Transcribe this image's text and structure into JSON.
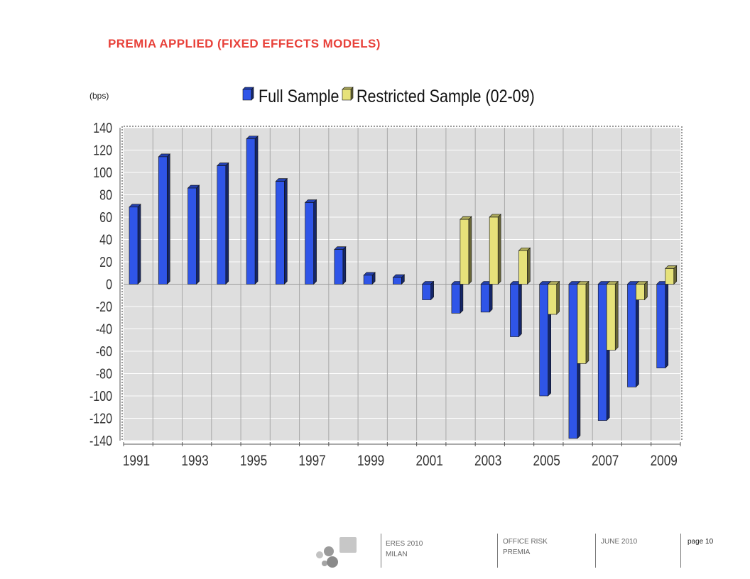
{
  "slide": {
    "title": "PREMIA APPLIED (FIXED EFFECTS MODELS)",
    "unit_label": "(bps)"
  },
  "chart_data": {
    "type": "bar",
    "title": "",
    "xlabel": "",
    "ylabel": "(bps)",
    "categories": [
      "1991",
      "1992",
      "1993",
      "1994",
      "1995",
      "1996",
      "1997",
      "1998",
      "1999",
      "2000",
      "2001",
      "2002",
      "2003",
      "2004",
      "2005",
      "2006",
      "2007",
      "2008",
      "2009"
    ],
    "x_tick_labels": [
      "1991",
      "1993",
      "1995",
      "1997",
      "1999",
      "2001",
      "2003",
      "2005",
      "2007",
      "2009"
    ],
    "y_ticks": [
      140,
      120,
      100,
      80,
      60,
      40,
      20,
      0,
      -20,
      -40,
      -60,
      -80,
      -100,
      -120,
      -140
    ],
    "ylim": [
      -140,
      140
    ],
    "grid": true,
    "legend_position": "top-center",
    "series": [
      {
        "name": "Full Sample",
        "color": "#2f55e8",
        "values": [
          69,
          114,
          86,
          106,
          130,
          92,
          73,
          31,
          8,
          6,
          -14,
          -26,
          -25,
          -47,
          -100,
          -138,
          -122,
          -92,
          -75
        ]
      },
      {
        "name": "Restricted Sample (02-09)",
        "color": "#e6e27a",
        "values": [
          null,
          null,
          null,
          null,
          null,
          null,
          null,
          null,
          null,
          null,
          null,
          58,
          60,
          30,
          -27,
          -71,
          -59,
          -14,
          14
        ]
      }
    ]
  },
  "footer": {
    "col1": [
      "ERES 2010",
      "MILAN"
    ],
    "col2": [
      "OFFICE RISK",
      "PREMIA"
    ],
    "col3": [
      "JUNE 2010"
    ],
    "page": "page 10"
  }
}
